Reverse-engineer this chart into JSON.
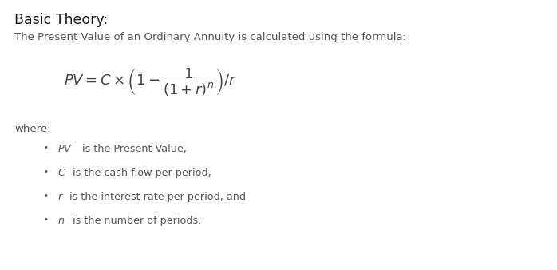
{
  "background_color": "#ffffff",
  "title": "Basic Theory:",
  "title_fontsize": 12.5,
  "title_color": "#1a1a1a",
  "subtitle": "The Present Value of an Ordinary Annuity is calculated using the formula:",
  "subtitle_fontsize": 9.5,
  "subtitle_color": "#555555",
  "formula_fontsize": 13,
  "formula_color": "#444444",
  "where_label": "where:",
  "where_fontsize": 9.5,
  "where_color": "#555555",
  "bullet_items": [
    [
      "$PV$",
      " is the Present Value,"
    ],
    [
      "$C$",
      " is the cash flow per period,"
    ],
    [
      "$r$",
      " is the interest rate per period, and"
    ],
    [
      "$n$",
      " is the number of periods."
    ]
  ],
  "bullet_fontsize": 9.2,
  "bullet_color": "#555555",
  "bullet_offsets": [
    0.038,
    0.022,
    0.016,
    0.022
  ]
}
